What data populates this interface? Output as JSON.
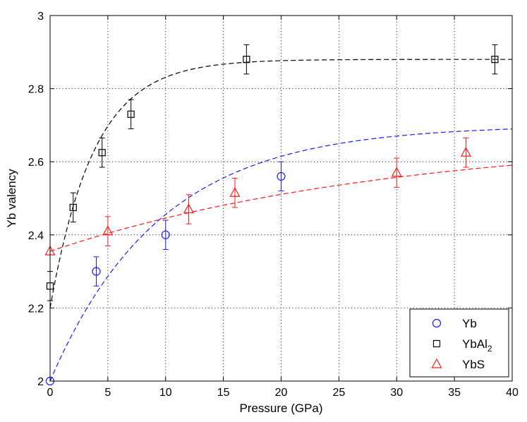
{
  "chart_data": {
    "type": "scatter",
    "title": "",
    "xlabel": "Pressure (GPa)",
    "ylabel": "Yb valency",
    "xlim": [
      0,
      40
    ],
    "ylim": [
      2,
      3
    ],
    "xticks": [
      0,
      5,
      10,
      15,
      20,
      25,
      30,
      35,
      40
    ],
    "yticks": [
      2,
      2.2,
      2.4,
      2.6,
      2.8,
      3
    ],
    "xtick_labels": [
      "0",
      "5",
      "10",
      "15",
      "20",
      "25",
      "30",
      "35",
      "40"
    ],
    "ytick_labels": [
      "2",
      "2.2",
      "2.4",
      "2.6",
      "2.8",
      "3"
    ],
    "grid": true,
    "legend_position": "bottom-right",
    "series": [
      {
        "name": "Yb",
        "legend_base": "Yb",
        "legend_sub": "",
        "marker": "circle",
        "color": "#1a1aff",
        "x": [
          0,
          4,
          10,
          20
        ],
        "y": [
          2.0,
          2.3,
          2.4,
          2.56
        ],
        "err": [
          0,
          0.04,
          0.04,
          0.04
        ],
        "fit": {
          "form": "saturating-exponential",
          "a": 2.0,
          "b": 0.7,
          "tau": 9.5
        }
      },
      {
        "name": "YbAl2",
        "legend_base": "YbAl",
        "legend_sub": "2",
        "marker": "square",
        "color": "#000000",
        "x": [
          0,
          2,
          4.5,
          7,
          17,
          38.5
        ],
        "y": [
          2.26,
          2.475,
          2.625,
          2.73,
          2.88,
          2.88
        ],
        "err": [
          0.04,
          0.04,
          0.04,
          0.04,
          0.04,
          0.04
        ],
        "fit": {
          "form": "saturating-exponential-plateau",
          "a": 2.2,
          "b": 0.68,
          "tau": 3.8,
          "plateau": 2.88
        }
      },
      {
        "name": "YbS",
        "legend_base": "YbS",
        "legend_sub": "",
        "marker": "triangle",
        "color": "#ff1a1a",
        "x": [
          0,
          5,
          12,
          16,
          30,
          36
        ],
        "y": [
          2.355,
          2.41,
          2.47,
          2.515,
          2.57,
          2.625
        ],
        "err": [
          0,
          0.04,
          0.04,
          0.04,
          0.04,
          0.04
        ],
        "fit": {
          "form": "saturating-exponential",
          "a": 2.355,
          "b": 0.32,
          "tau": 30
        }
      }
    ]
  }
}
